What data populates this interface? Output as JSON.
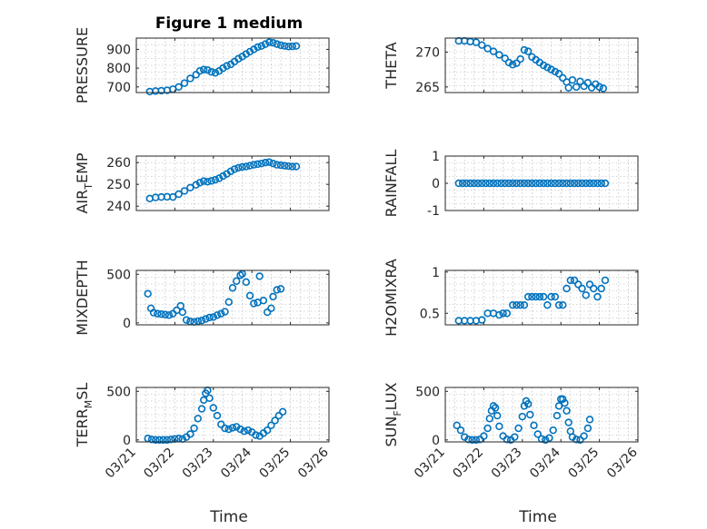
{
  "figure": {
    "title": "Figure 1 medium",
    "marker_color": "#0072BD",
    "grid": "minor dotted"
  },
  "chart_data": [
    {
      "type": "scatter",
      "ylabel": "PRESSURE",
      "yticks": [
        700,
        800,
        900
      ],
      "ylim": [
        670,
        960
      ],
      "xlim": [
        "03/21",
        "03/26"
      ],
      "xticklabels": [],
      "xlabel": "",
      "points": [
        [
          0.35,
          675
        ],
        [
          0.5,
          678
        ],
        [
          0.65,
          680
        ],
        [
          0.8,
          682
        ],
        [
          0.95,
          688
        ],
        [
          1.1,
          700
        ],
        [
          1.25,
          720
        ],
        [
          1.4,
          745
        ],
        [
          1.55,
          765
        ],
        [
          1.65,
          785
        ],
        [
          1.75,
          792
        ],
        [
          1.85,
          790
        ],
        [
          1.95,
          780
        ],
        [
          2.05,
          775
        ],
        [
          2.15,
          785
        ],
        [
          2.25,
          800
        ],
        [
          2.35,
          812
        ],
        [
          2.45,
          820
        ],
        [
          2.55,
          835
        ],
        [
          2.65,
          850
        ],
        [
          2.75,
          862
        ],
        [
          2.85,
          875
        ],
        [
          2.95,
          888
        ],
        [
          3.05,
          900
        ],
        [
          3.15,
          912
        ],
        [
          3.25,
          918
        ],
        [
          3.35,
          928
        ],
        [
          3.45,
          938
        ],
        [
          3.55,
          935
        ],
        [
          3.65,
          928
        ],
        [
          3.75,
          922
        ],
        [
          3.85,
          918
        ],
        [
          3.95,
          915
        ],
        [
          4.05,
          916
        ],
        [
          4.15,
          918
        ]
      ]
    },
    {
      "type": "scatter",
      "ylabel": "THETA",
      "yticks": [
        265,
        270
      ],
      "ylim": [
        264.2,
        272
      ],
      "xlim": [
        "03/21",
        "03/26"
      ],
      "xticklabels": [],
      "xlabel": "",
      "points": [
        [
          0.35,
          271.6
        ],
        [
          0.5,
          271.6
        ],
        [
          0.65,
          271.5
        ],
        [
          0.8,
          271.4
        ],
        [
          0.95,
          271.0
        ],
        [
          1.1,
          270.5
        ],
        [
          1.25,
          270.1
        ],
        [
          1.4,
          269.6
        ],
        [
          1.55,
          269.1
        ],
        [
          1.65,
          268.5
        ],
        [
          1.75,
          268.2
        ],
        [
          1.85,
          268.4
        ],
        [
          1.95,
          269.0
        ],
        [
          2.05,
          270.3
        ],
        [
          2.15,
          270.1
        ],
        [
          2.25,
          269.3
        ],
        [
          2.35,
          268.9
        ],
        [
          2.45,
          268.5
        ],
        [
          2.55,
          268.1
        ],
        [
          2.65,
          267.8
        ],
        [
          2.75,
          267.5
        ],
        [
          2.85,
          267.2
        ],
        [
          2.95,
          266.9
        ],
        [
          3.05,
          266.3
        ],
        [
          3.15,
          265.7
        ],
        [
          3.2,
          264.9
        ],
        [
          3.3,
          266.0
        ],
        [
          3.4,
          265.0
        ],
        [
          3.5,
          265.8
        ],
        [
          3.6,
          265.1
        ],
        [
          3.7,
          265.6
        ],
        [
          3.8,
          264.9
        ],
        [
          3.9,
          265.4
        ],
        [
          4.0,
          265.0
        ],
        [
          4.1,
          264.8
        ]
      ]
    },
    {
      "type": "scatter",
      "ylabel_base": "AIR",
      "ylabel_sub": "T",
      "ylabel_rest": "EMP",
      "yticks": [
        240,
        250,
        260
      ],
      "ylim": [
        238,
        263
      ],
      "xlim": [
        "03/21",
        "03/26"
      ],
      "xticklabels": [],
      "xlabel": "",
      "points": [
        [
          0.35,
          243.5
        ],
        [
          0.5,
          244.0
        ],
        [
          0.65,
          244.2
        ],
        [
          0.8,
          244.3
        ],
        [
          0.95,
          244.2
        ],
        [
          1.1,
          245.5
        ],
        [
          1.25,
          247.0
        ],
        [
          1.4,
          248.5
        ],
        [
          1.55,
          249.8
        ],
        [
          1.65,
          250.8
        ],
        [
          1.75,
          251.5
        ],
        [
          1.85,
          251.2
        ],
        [
          1.95,
          251.6
        ],
        [
          2.05,
          252.1
        ],
        [
          2.15,
          252.8
        ],
        [
          2.25,
          253.8
        ],
        [
          2.35,
          254.8
        ],
        [
          2.45,
          256.0
        ],
        [
          2.55,
          257.0
        ],
        [
          2.65,
          257.6
        ],
        [
          2.75,
          258.0
        ],
        [
          2.85,
          258.2
        ],
        [
          2.95,
          258.6
        ],
        [
          3.05,
          259.0
        ],
        [
          3.15,
          259.3
        ],
        [
          3.25,
          259.6
        ],
        [
          3.35,
          260.0
        ],
        [
          3.45,
          260.2
        ],
        [
          3.55,
          259.6
        ],
        [
          3.65,
          259.0
        ],
        [
          3.75,
          258.8
        ],
        [
          3.85,
          258.6
        ],
        [
          3.95,
          258.4
        ],
        [
          4.05,
          258.2
        ],
        [
          4.15,
          258.2
        ]
      ]
    },
    {
      "type": "scatter",
      "ylabel": "RAINFALL",
      "yticks": [
        -1,
        0,
        1
      ],
      "ylim": [
        -1,
        1
      ],
      "xlim": [
        "03/21",
        "03/26"
      ],
      "xticklabels": [],
      "xlabel": "",
      "points": [
        [
          0.35,
          0
        ],
        [
          0.45,
          0
        ],
        [
          0.55,
          0
        ],
        [
          0.65,
          0
        ],
        [
          0.75,
          0
        ],
        [
          0.85,
          0
        ],
        [
          0.95,
          0
        ],
        [
          1.05,
          0
        ],
        [
          1.15,
          0
        ],
        [
          1.25,
          0
        ],
        [
          1.35,
          0
        ],
        [
          1.45,
          0
        ],
        [
          1.55,
          0
        ],
        [
          1.65,
          0
        ],
        [
          1.75,
          0
        ],
        [
          1.85,
          0
        ],
        [
          1.95,
          0
        ],
        [
          2.05,
          0
        ],
        [
          2.15,
          0
        ],
        [
          2.25,
          0
        ],
        [
          2.35,
          0
        ],
        [
          2.45,
          0
        ],
        [
          2.55,
          0
        ],
        [
          2.65,
          0
        ],
        [
          2.75,
          0
        ],
        [
          2.85,
          0
        ],
        [
          2.95,
          0
        ],
        [
          3.05,
          0
        ],
        [
          3.15,
          0
        ],
        [
          3.25,
          0
        ],
        [
          3.35,
          0
        ],
        [
          3.45,
          0
        ],
        [
          3.55,
          0
        ],
        [
          3.65,
          0
        ],
        [
          3.75,
          0
        ],
        [
          3.85,
          0
        ],
        [
          3.95,
          0
        ],
        [
          4.05,
          0
        ],
        [
          4.15,
          0
        ]
      ]
    },
    {
      "type": "scatter",
      "ylabel": "MIXDEPTH",
      "yticks": [
        0,
        500
      ],
      "ylim": [
        -20,
        540
      ],
      "xlim": [
        "03/21",
        "03/26"
      ],
      "xticklabels": [],
      "xlabel": "",
      "points": [
        [
          0.3,
          300
        ],
        [
          0.38,
          150
        ],
        [
          0.45,
          105
        ],
        [
          0.55,
          95
        ],
        [
          0.65,
          90
        ],
        [
          0.75,
          85
        ],
        [
          0.85,
          80
        ],
        [
          0.95,
          95
        ],
        [
          1.05,
          130
        ],
        [
          1.15,
          175
        ],
        [
          1.2,
          110
        ],
        [
          1.3,
          30
        ],
        [
          1.4,
          15
        ],
        [
          1.5,
          10
        ],
        [
          1.6,
          18
        ],
        [
          1.7,
          25
        ],
        [
          1.8,
          40
        ],
        [
          1.9,
          55
        ],
        [
          2.0,
          60
        ],
        [
          2.1,
          80
        ],
        [
          2.2,
          95
        ],
        [
          2.3,
          115
        ],
        [
          2.4,
          215
        ],
        [
          2.5,
          360
        ],
        [
          2.6,
          430
        ],
        [
          2.7,
          490
        ],
        [
          2.75,
          505
        ],
        [
          2.85,
          420
        ],
        [
          2.95,
          280
        ],
        [
          3.05,
          200
        ],
        [
          3.15,
          210
        ],
        [
          3.2,
          480
        ],
        [
          3.3,
          230
        ],
        [
          3.4,
          110
        ],
        [
          3.5,
          150
        ],
        [
          3.55,
          270
        ],
        [
          3.65,
          340
        ],
        [
          3.75,
          350
        ]
      ]
    },
    {
      "type": "scatter",
      "ylabel": "H2OMIXRA",
      "yticks": [
        0.5,
        1
      ],
      "ylim": [
        0.36,
        1.02
      ],
      "xlim": [
        "03/21",
        "03/26"
      ],
      "xticklabels": [],
      "xlabel": "",
      "points": [
        [
          0.35,
          0.41
        ],
        [
          0.5,
          0.41
        ],
        [
          0.65,
          0.41
        ],
        [
          0.8,
          0.41
        ],
        [
          0.95,
          0.42
        ],
        [
          1.1,
          0.5
        ],
        [
          1.25,
          0.5
        ],
        [
          1.4,
          0.48
        ],
        [
          1.5,
          0.5
        ],
        [
          1.6,
          0.5
        ],
        [
          1.75,
          0.6
        ],
        [
          1.85,
          0.6
        ],
        [
          1.95,
          0.6
        ],
        [
          2.05,
          0.6
        ],
        [
          2.15,
          0.7
        ],
        [
          2.25,
          0.7
        ],
        [
          2.35,
          0.7
        ],
        [
          2.45,
          0.7
        ],
        [
          2.55,
          0.7
        ],
        [
          2.65,
          0.6
        ],
        [
          2.75,
          0.7
        ],
        [
          2.85,
          0.7
        ],
        [
          2.95,
          0.6
        ],
        [
          3.05,
          0.6
        ],
        [
          3.15,
          0.8
        ],
        [
          3.25,
          0.9
        ],
        [
          3.35,
          0.9
        ],
        [
          3.45,
          0.85
        ],
        [
          3.55,
          0.8
        ],
        [
          3.65,
          0.72
        ],
        [
          3.75,
          0.85
        ],
        [
          3.85,
          0.8
        ],
        [
          3.95,
          0.7
        ],
        [
          4.05,
          0.8
        ],
        [
          4.15,
          0.9
        ]
      ]
    },
    {
      "type": "scatter",
      "ylabel_base": "TERR",
      "ylabel_sub": "M",
      "ylabel_rest": "SL",
      "yticks": [
        0,
        500
      ],
      "ylim": [
        -20,
        540
      ],
      "xlim": [
        "03/21",
        "03/26"
      ],
      "xticklabels": [
        "03/21",
        "03/22",
        "03/23",
        "03/24",
        "03/25",
        "03/26"
      ],
      "xlabel": "Time",
      "points": [
        [
          0.3,
          15
        ],
        [
          0.4,
          5
        ],
        [
          0.5,
          0
        ],
        [
          0.6,
          0
        ],
        [
          0.7,
          0
        ],
        [
          0.8,
          0
        ],
        [
          0.9,
          5
        ],
        [
          1.0,
          10
        ],
        [
          1.1,
          15
        ],
        [
          1.2,
          10
        ],
        [
          1.3,
          30
        ],
        [
          1.4,
          60
        ],
        [
          1.5,
          120
        ],
        [
          1.6,
          220
        ],
        [
          1.7,
          320
        ],
        [
          1.75,
          410
        ],
        [
          1.8,
          480
        ],
        [
          1.85,
          510
        ],
        [
          1.9,
          430
        ],
        [
          2.0,
          330
        ],
        [
          2.1,
          250
        ],
        [
          2.2,
          160
        ],
        [
          2.3,
          120
        ],
        [
          2.4,
          110
        ],
        [
          2.5,
          125
        ],
        [
          2.6,
          135
        ],
        [
          2.7,
          110
        ],
        [
          2.8,
          90
        ],
        [
          2.9,
          100
        ],
        [
          3.0,
          80
        ],
        [
          3.1,
          50
        ],
        [
          3.2,
          40
        ],
        [
          3.3,
          70
        ],
        [
          3.4,
          100
        ],
        [
          3.5,
          150
        ],
        [
          3.6,
          200
        ],
        [
          3.7,
          250
        ],
        [
          3.8,
          290
        ]
      ]
    },
    {
      "type": "scatter",
      "ylabel_base": "SUN",
      "ylabel_sub": "F",
      "ylabel_rest": "LUX",
      "yticks": [
        0,
        500
      ],
      "ylim": [
        -20,
        540
      ],
      "xlim": [
        "03/21",
        "03/26"
      ],
      "xticklabels": [
        "03/21",
        "03/22",
        "03/23",
        "03/24",
        "03/25",
        "03/26"
      ],
      "xlabel": "Time",
      "points": [
        [
          0.3,
          150
        ],
        [
          0.4,
          100
        ],
        [
          0.5,
          30
        ],
        [
          0.6,
          5
        ],
        [
          0.7,
          0
        ],
        [
          0.8,
          0
        ],
        [
          0.9,
          5
        ],
        [
          1.0,
          40
        ],
        [
          1.1,
          120
        ],
        [
          1.15,
          220
        ],
        [
          1.2,
          300
        ],
        [
          1.25,
          350
        ],
        [
          1.3,
          330
        ],
        [
          1.35,
          250
        ],
        [
          1.4,
          140
        ],
        [
          1.5,
          40
        ],
        [
          1.6,
          5
        ],
        [
          1.7,
          0
        ],
        [
          1.8,
          30
        ],
        [
          1.9,
          120
        ],
        [
          2.0,
          240
        ],
        [
          2.05,
          350
        ],
        [
          2.1,
          400
        ],
        [
          2.15,
          370
        ],
        [
          2.2,
          260
        ],
        [
          2.3,
          150
        ],
        [
          2.4,
          60
        ],
        [
          2.5,
          10
        ],
        [
          2.6,
          0
        ],
        [
          2.7,
          20
        ],
        [
          2.8,
          100
        ],
        [
          2.9,
          250
        ],
        [
          2.95,
          350
        ],
        [
          3.0,
          420
        ],
        [
          3.05,
          420
        ],
        [
          3.1,
          380
        ],
        [
          3.15,
          300
        ],
        [
          3.2,
          180
        ],
        [
          3.25,
          90
        ],
        [
          3.3,
          30
        ],
        [
          3.4,
          5
        ],
        [
          3.5,
          0
        ],
        [
          3.6,
          40
        ],
        [
          3.7,
          120
        ],
        [
          3.75,
          210
        ]
      ]
    }
  ]
}
